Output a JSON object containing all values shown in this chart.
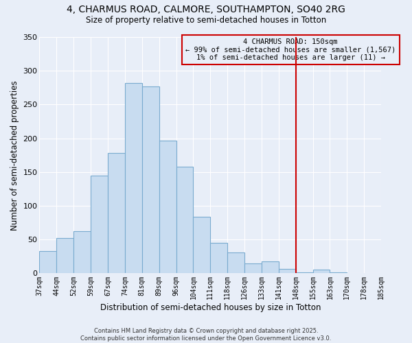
{
  "title1": "4, CHARMUS ROAD, CALMORE, SOUTHAMPTON, SO40 2RG",
  "title2": "Size of property relative to semi-detached houses in Totton",
  "xlabel": "Distribution of semi-detached houses by size in Totton",
  "ylabel": "Number of semi-detached properties",
  "bar_values": [
    33,
    52,
    62,
    145,
    178,
    282,
    277,
    197,
    158,
    84,
    45,
    31,
    15,
    18,
    7,
    1,
    5,
    1
  ],
  "bin_labels": [
    "37sqm",
    "44sqm",
    "52sqm",
    "59sqm",
    "67sqm",
    "74sqm",
    "81sqm",
    "89sqm",
    "96sqm",
    "104sqm",
    "111sqm",
    "118sqm",
    "126sqm",
    "133sqm",
    "141sqm",
    "148sqm",
    "155sqm",
    "163sqm",
    "170sqm",
    "178sqm",
    "185sqm"
  ],
  "bar_color": "#c8dcf0",
  "bar_edge_color": "#7aabcf",
  "bg_color": "#e8eef8",
  "grid_color": "#ffffff",
  "vline_color": "#cc0000",
  "annotation_text": "4 CHARMUS ROAD: 150sqm\n← 99% of semi-detached houses are smaller (1,567)\n1% of semi-detached houses are larger (11) →",
  "annotation_box_color": "#cc0000",
  "ylim": [
    0,
    350
  ],
  "yticks": [
    0,
    50,
    100,
    150,
    200,
    250,
    300,
    350
  ],
  "footnote1": "Contains HM Land Registry data © Crown copyright and database right 2025.",
  "footnote2": "Contains public sector information licensed under the Open Government Licence v3.0."
}
